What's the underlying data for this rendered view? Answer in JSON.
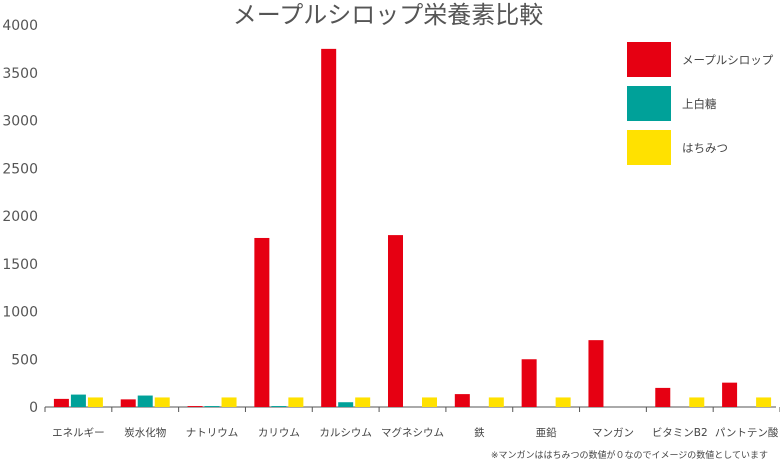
{
  "chart_data": {
    "type": "bar",
    "title": "メープルシロップ栄養素比較",
    "categories": [
      "エネルギー",
      "炭水化物",
      "ナトリウム",
      "カリウム",
      "カルシウム",
      "マグネシウム",
      "鉄",
      "亜鉛",
      "マンガン",
      "ビタミンB2",
      "パントテン酸"
    ],
    "series": [
      {
        "name": "メープルシロップ",
        "color": "#e60012",
        "values": [
          85,
          80,
          10,
          1770,
          3750,
          1800,
          135,
          500,
          700,
          200,
          255
        ]
      },
      {
        "name": "上白糖",
        "color": "#00a199",
        "values": [
          130,
          120,
          10,
          10,
          50,
          0,
          0,
          0,
          0,
          0,
          0
        ]
      },
      {
        "name": "はちみつ",
        "color": "#ffe100",
        "values": [
          100,
          100,
          100,
          100,
          100,
          100,
          100,
          100,
          0,
          100,
          100
        ]
      }
    ],
    "ylim": [
      0,
      4000
    ],
    "yticks": [
      0,
      500,
      1000,
      1500,
      2000,
      2500,
      3000,
      3500,
      4000
    ],
    "grid": false,
    "legend_position": "top-right",
    "xlabel": "",
    "ylabel": "",
    "note": "※マンガンははちみつの数値が０なのでイメージの数値としています"
  }
}
